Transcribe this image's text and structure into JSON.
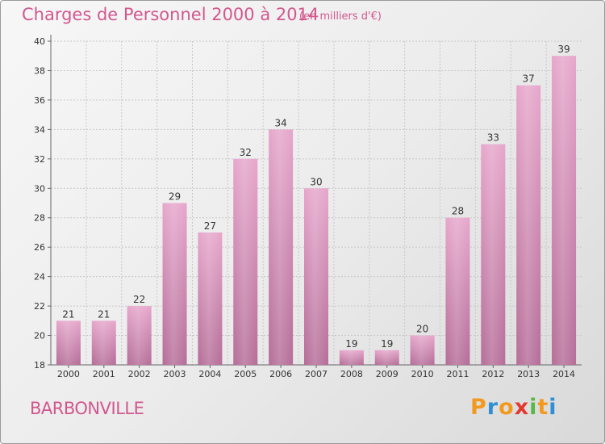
{
  "chart_data": {
    "type": "bar",
    "title": "Charges de Personnel 2000 à 2014",
    "subtitle": "(en milliers d'€)",
    "categories": [
      "2000",
      "2001",
      "2002",
      "2003",
      "2004",
      "2005",
      "2006",
      "2007",
      "2008",
      "2009",
      "2010",
      "2011",
      "2012",
      "2013",
      "2014"
    ],
    "values": [
      21,
      21,
      22,
      29,
      27,
      32,
      34,
      30,
      19,
      19,
      20,
      28,
      33,
      37,
      39
    ],
    "ylim": [
      18,
      40
    ],
    "yticks": [
      18,
      20,
      22,
      24,
      26,
      28,
      30,
      32,
      34,
      36,
      38,
      40
    ],
    "grid": true,
    "bar_color": "#d88bb5"
  },
  "footer": {
    "commune": "BARBONVILLE",
    "brand": {
      "letters": [
        "P",
        "r",
        "o",
        "x",
        "i",
        "t",
        "i"
      ],
      "colors": [
        "#f29a1f",
        "#2e8fd4",
        "#f29a1f",
        "#e23a2f",
        "#57b847",
        "#f29a1f",
        "#2e8fd4"
      ]
    }
  }
}
